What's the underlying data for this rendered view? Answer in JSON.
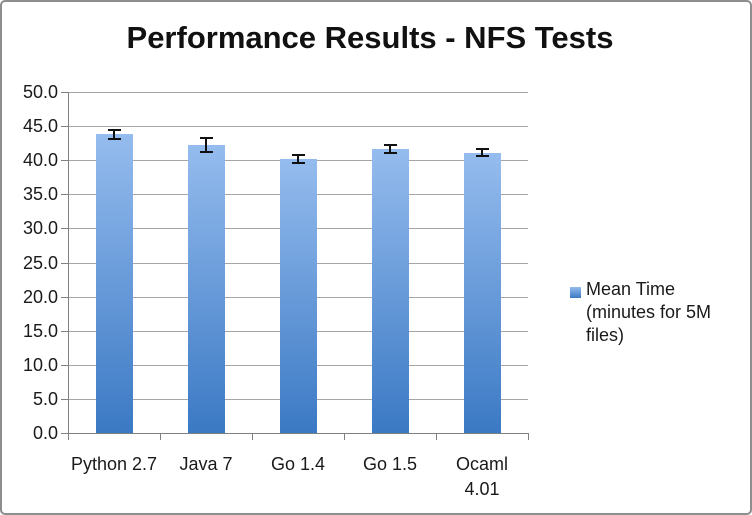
{
  "window": {
    "background": "#ffffff",
    "frame_border_color": "#8e8e8e"
  },
  "chart_data": {
    "type": "bar",
    "title": "Performance Results - NFS Tests",
    "categories": [
      "Python 2.7",
      "Java 7",
      "Go 1.4",
      "Go 1.5",
      "Ocaml 4.01"
    ],
    "xtick_lines": [
      [
        "Python 2.7"
      ],
      [
        "Java 7"
      ],
      [
        "Go 1.4"
      ],
      [
        "Go 1.5"
      ],
      [
        "Ocaml",
        "4.01"
      ]
    ],
    "series": [
      {
        "name": "Mean Time (minutes for 5M files)",
        "values": [
          43.8,
          42.2,
          40.2,
          41.7,
          41.1
        ],
        "error_bars": [
          0.7,
          1.0,
          0.6,
          0.6,
          0.5
        ]
      }
    ],
    "xlabel": "",
    "ylabel": "",
    "ylim": [
      0,
      50
    ],
    "ytick_step": 5,
    "ytick_decimals": 1,
    "grid": true,
    "legend": {
      "position": "right",
      "label": "Mean Time (minutes for 5M files)",
      "lines": [
        "Mean Time",
        "(minutes for 5M",
        "files)"
      ]
    },
    "colors": {
      "bar_gradient_top": "#95bcee",
      "bar_gradient_bottom": "#3b79c4",
      "gridline": "#a6a6a6",
      "axis": "#808080",
      "error_bar": "#111111",
      "text": "#1a1a1a"
    }
  }
}
